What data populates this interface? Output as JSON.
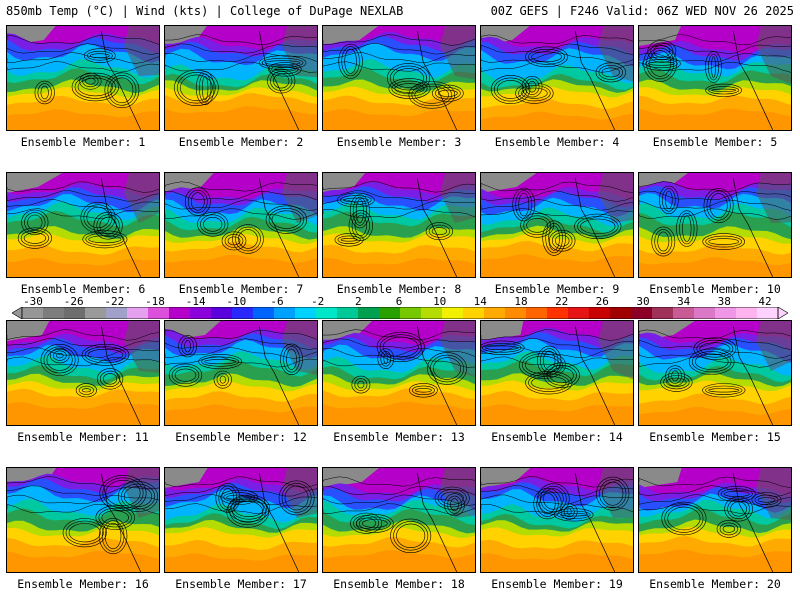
{
  "header": {
    "left_title": "850mb Temp (°C) | Wind (kts) | College of DuPage NEXLAB",
    "right_title": "00Z GEFS | F246 Valid: 06Z WED NOV 26 2025"
  },
  "colorbar": {
    "tick_labels": [
      "-30",
      "-26",
      "-22",
      "-18",
      "-14",
      "-10",
      "-6",
      "-2",
      "2",
      "6",
      "10",
      "14",
      "18",
      "22",
      "26",
      "30",
      "34",
      "38",
      "42"
    ],
    "colors": [
      "#969696",
      "#7d7d7d",
      "#6e6e6e",
      "#9a9a9a",
      "#a0a0c8",
      "#e6a0f0",
      "#dc50dc",
      "#b400c8",
      "#8c00dc",
      "#5a00dc",
      "#2828ff",
      "#0064ff",
      "#00a0ff",
      "#00d2ff",
      "#00e6c8",
      "#00c896",
      "#00a050",
      "#28a000",
      "#78c800",
      "#b4dc00",
      "#f0f000",
      "#ffd200",
      "#ffaa00",
      "#ff8c00",
      "#ff6400",
      "#ff3200",
      "#e61414",
      "#c80000",
      "#a00000",
      "#8c0028",
      "#a0325a",
      "#c85a96",
      "#dc78c8",
      "#f096e6",
      "#ffb4f0",
      "#ffd2ff"
    ]
  },
  "panels": [
    {
      "label": "Ensemble Member: 1"
    },
    {
      "label": "Ensemble Member: 2"
    },
    {
      "label": "Ensemble Member: 3"
    },
    {
      "label": "Ensemble Member: 4"
    },
    {
      "label": "Ensemble Member: 5"
    },
    {
      "label": "Ensemble Member: 6"
    },
    {
      "label": "Ensemble Member: 7"
    },
    {
      "label": "Ensemble Member: 8"
    },
    {
      "label": "Ensemble Member: 9"
    },
    {
      "label": "Ensemble Member: 10"
    },
    {
      "label": "Ensemble Member: 11"
    },
    {
      "label": "Ensemble Member: 12"
    },
    {
      "label": "Ensemble Member: 13"
    },
    {
      "label": "Ensemble Member: 14"
    },
    {
      "label": "Ensemble Member: 15"
    },
    {
      "label": "Ensemble Member: 16"
    },
    {
      "label": "Ensemble Member: 17"
    },
    {
      "label": "Ensemble Member: 18"
    },
    {
      "label": "Ensemble Member: 19"
    },
    {
      "label": "Ensemble Member: 20"
    }
  ]
}
